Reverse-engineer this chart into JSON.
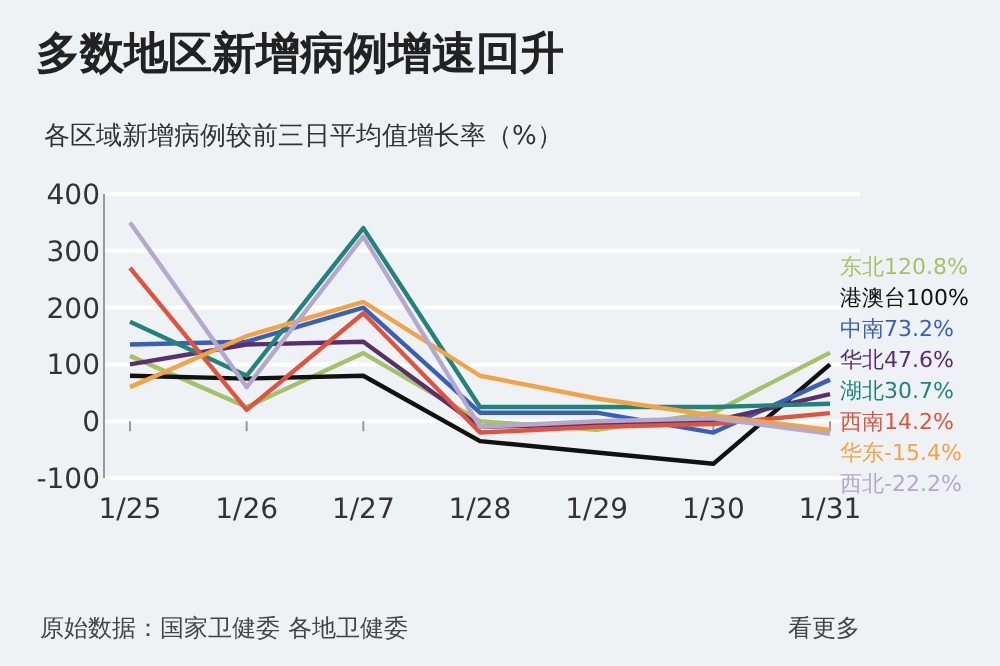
{
  "chart_data": {
    "type": "line",
    "title": "多数地区新增病例增速回升",
    "subtitle": "各区域新增病例较前三日平均值增长率（%）",
    "categories": [
      "1/25",
      "1/26",
      "1/27",
      "1/28",
      "1/29",
      "1/30",
      "1/31"
    ],
    "ylim": [
      -100,
      400
    ],
    "yticks": [
      -100,
      0,
      100,
      200,
      300,
      400
    ],
    "grid": "y",
    "legend": "right",
    "series": [
      {
        "name": "东北120.8%",
        "color": "#a5c26a",
        "values": [
          115,
          25,
          120,
          0,
          -15,
          15,
          120.8
        ]
      },
      {
        "name": "港澳台100%",
        "color": "#111111",
        "values": [
          80,
          75,
          80,
          -35,
          -55,
          -75,
          100
        ]
      },
      {
        "name": "中南73.2%",
        "color": "#3a5fb8",
        "values": [
          135,
          140,
          200,
          15,
          15,
          -20,
          73.2
        ]
      },
      {
        "name": "华北47.6%",
        "color": "#5a2f6e",
        "values": [
          100,
          135,
          140,
          -10,
          -5,
          0,
          47.6
        ]
      },
      {
        "name": "湖北30.7%",
        "color": "#21837a",
        "values": [
          175,
          80,
          340,
          25,
          25,
          25,
          30.7
        ]
      },
      {
        "name": "西南14.2%",
        "color": "#e0533e",
        "values": [
          270,
          20,
          190,
          -20,
          -10,
          -5,
          14.2
        ]
      },
      {
        "name": "华东-15.4%",
        "color": "#f0a347",
        "values": [
          60,
          150,
          210,
          80,
          40,
          10,
          -15.4
        ]
      },
      {
        "name": "西北-22.2%",
        "color": "#b6a7cc",
        "values": [
          350,
          60,
          325,
          -10,
          0,
          5,
          -22.2
        ]
      }
    ],
    "annotations": [
      "原始数据：国家卫健委 各地卫健委",
      "看更多"
    ]
  }
}
